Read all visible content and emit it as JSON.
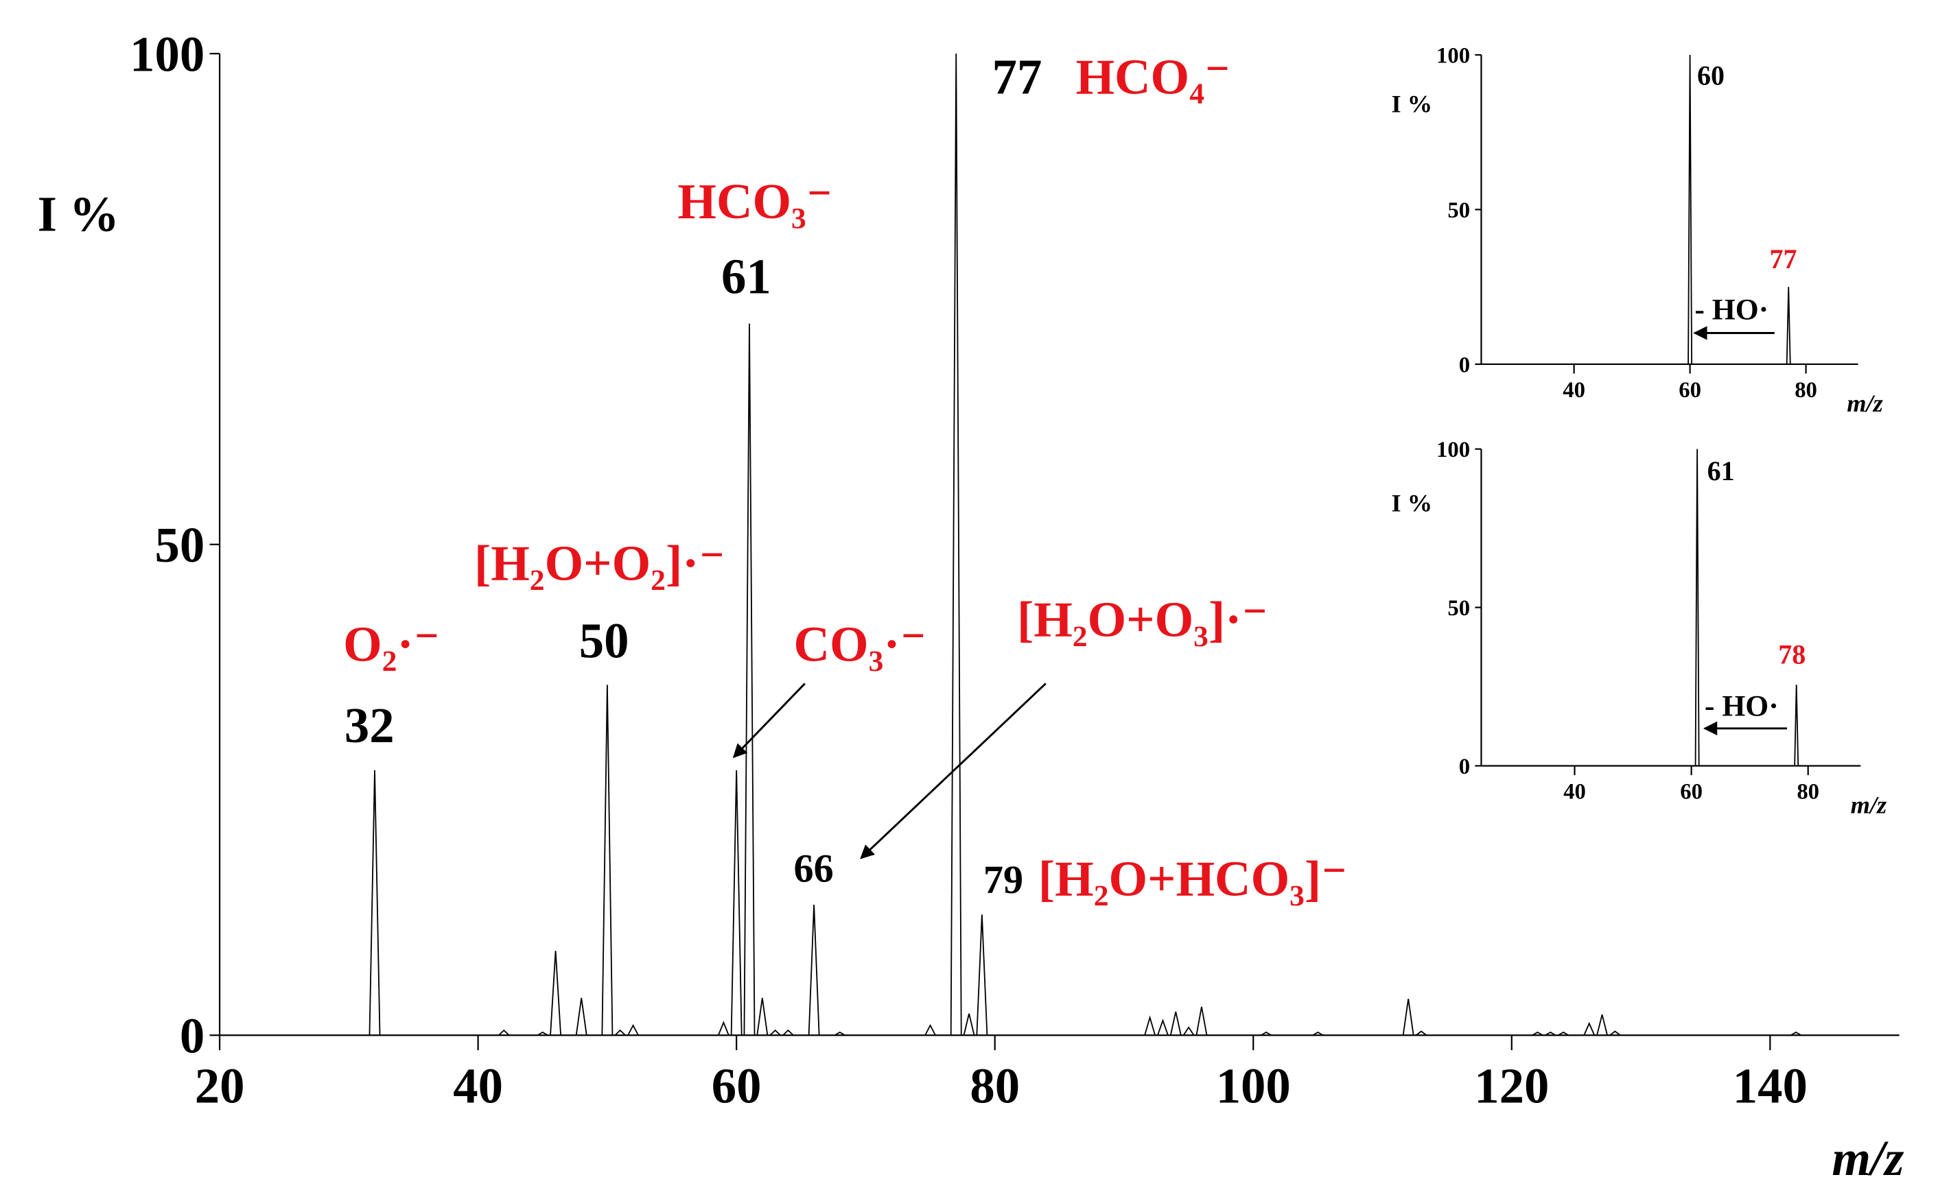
{
  "chart_data": [
    {
      "type": "spectrum",
      "x": [
        32,
        42,
        45,
        46,
        48,
        50,
        51,
        52,
        59,
        60,
        61,
        62,
        63,
        64,
        66,
        68,
        75,
        77,
        78,
        79,
        92,
        93,
        94,
        95,
        96,
        101,
        105,
        112,
        113,
        122,
        123,
        124,
        126,
        127,
        128,
        142
      ],
      "values": [
        27,
        0.5,
        0.3,
        8.6,
        3.8,
        35.7,
        0.5,
        1,
        1.3,
        27,
        72.5,
        3.8,
        0.5,
        0.5,
        13.3,
        0.3,
        1,
        100,
        2.2,
        12.3,
        1.8,
        1.5,
        2.4,
        0.8,
        2.9,
        0.3,
        0.3,
        3.7,
        0.4,
        0.3,
        0.3,
        0.3,
        1.2,
        2.1,
        0.4,
        0.3
      ],
      "color": "#000000",
      "xlim": [
        20,
        150
      ],
      "ylim": [
        0,
        100
      ],
      "xticks": [
        20,
        40,
        60,
        80,
        100,
        120,
        140
      ],
      "yticks": [
        0,
        50,
        100
      ],
      "xlabel": "m/z",
      "ylabel": "I %",
      "peak_labels": [
        32,
        50,
        61,
        66,
        77,
        79
      ],
      "peak_label_colors": [
        "#000000",
        "#000000",
        "#000000",
        "#000000",
        "#000000",
        "#000000"
      ],
      "annotations": [
        "O₂·⁻",
        "[H₂O+O₂]·⁻",
        "HCO₃⁻",
        "CO₃·⁻",
        "[H₂O+O₃]·⁻",
        "HCO₄⁻",
        "[H₂O+HCO₃]⁻"
      ],
      "annotation_color": "#e8141b"
    },
    {
      "type": "spectrum",
      "x": [
        60,
        77
      ],
      "values": [
        100,
        25
      ],
      "color": "#000000",
      "xlim": [
        24,
        89
      ],
      "ylim": [
        0,
        100
      ],
      "xticks": [
        40,
        60,
        80
      ],
      "yticks": [
        0,
        50,
        100
      ],
      "xlabel": "m/z",
      "ylabel": "I %",
      "peak_labels": [
        60,
        77
      ],
      "peak_label_colors": [
        "#000000",
        "#e8141b"
      ],
      "annotations": [
        "- HO·"
      ],
      "annotation_color": "#000000"
    },
    {
      "type": "spectrum",
      "x": [
        61,
        78
      ],
      "values": [
        100,
        25.6
      ],
      "color": "#000000",
      "xlim": [
        24,
        89
      ],
      "ylim": [
        0,
        100
      ],
      "xticks": [
        40,
        60,
        80
      ],
      "yticks": [
        0,
        50,
        100
      ],
      "xlabel": "m/z",
      "ylabel": "I %",
      "peak_labels": [
        61,
        78
      ],
      "peak_label_colors": [
        "#000000",
        "#e8141b"
      ],
      "annotations": [
        "- HO·"
      ],
      "annotation_color": "#000000"
    }
  ]
}
